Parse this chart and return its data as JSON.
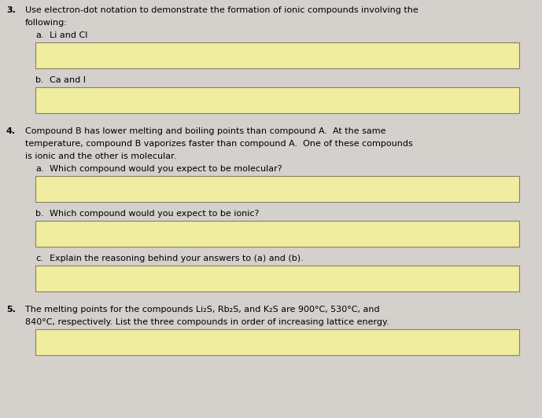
{
  "bg_color": "#d4d0cc",
  "box_fill_color": "#f0eca0",
  "box_edge_color": "#8a8060",
  "text_color": "#000000",
  "font_size": 8.0,
  "figsize": [
    6.89,
    5.32
  ],
  "dpi": 100,
  "q3_line1": "Use electron-dot notation to demonstrate the formation of ionic compounds involving the",
  "q3_line2": "following:",
  "q3a_label": "a.",
  "q3a_text": "Li and Cl",
  "q3b_label": "b.",
  "q3b_text": "Ca and I",
  "q4_line1": "Compound B has lower melting and boiling points than compound A.  At the same",
  "q4_line2": "temperature, compound B vaporizes faster than compound A.  One of these compounds",
  "q4_line3": "is ionic and the other is molecular.",
  "q4a_label": "a.",
  "q4a_text": "Which compound would you expect to be molecular?",
  "q4b_label": "b.",
  "q4b_text": "Which compound would you expect to be ionic?",
  "q4c_label": "c.",
  "q4c_text": "Explain the reasoning behind your answers to (a) and (b).",
  "q5_line1": "The melting points for the compounds Li₂S, Rb₂S, and K₂S are 900°C, 530°C, and",
  "q5_line2": "840°C, respectively. List the three compounds in order of increasing lattice energy.",
  "num3": "3.",
  "num4": "4.",
  "num5": "5."
}
